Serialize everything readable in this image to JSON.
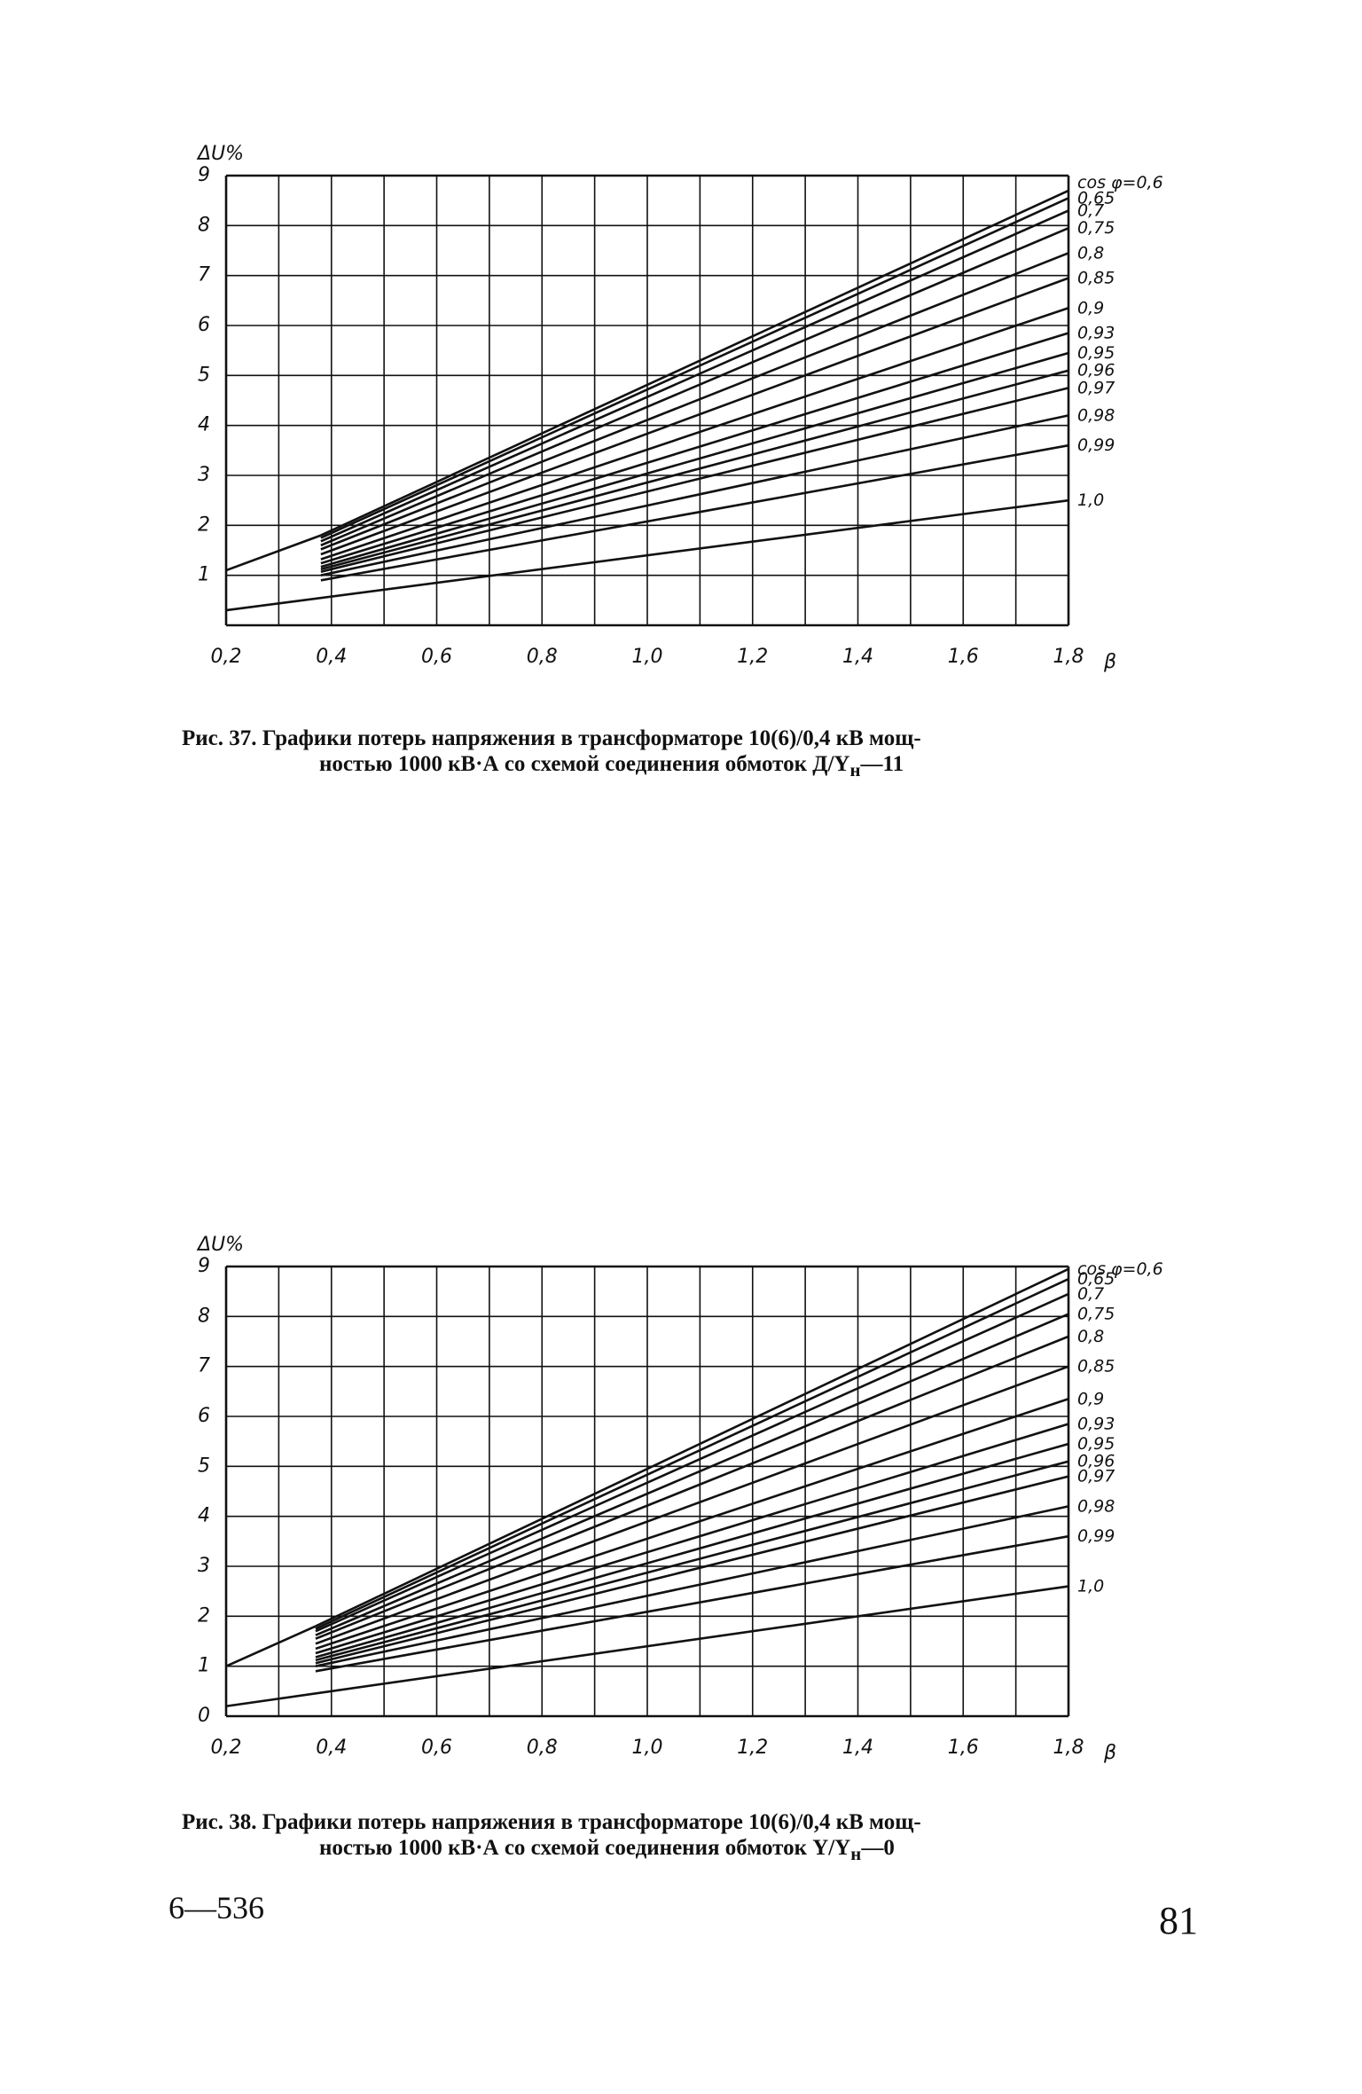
{
  "captions": {
    "fig37_line1": "Рис. 37. Графики потерь напряжения в трансформаторе 10(6)/0,4 кВ мощ-",
    "fig37_line2_main": "ностью 1000 кВ·А со схемой соединения обмоток Д/Y",
    "fig37_line2_sub": "н",
    "fig37_line2_tail": "—11",
    "fig38_line1": "Рис. 38. Графики потерь напряжения в трансформаторе 10(6)/0,4 кВ мощ-",
    "fig38_line2_main": "ностью 1000 кВ·А со схемой соединения обмоток Y/Y",
    "fig38_line2_sub": "н",
    "fig38_line2_tail": "—0"
  },
  "footer": {
    "left": "6—536",
    "right": "81"
  },
  "chart_data": [
    {
      "type": "line",
      "id": "fig37",
      "ylabel": "ΔU%",
      "xlabel": "β",
      "xlim": [
        0.2,
        1.8
      ],
      "ylim": [
        0,
        9
      ],
      "grid": true,
      "x_ticks": [
        "0,2",
        "0,4",
        "0,6",
        "0,8",
        "1,0",
        "1,2",
        "1,4",
        "1,6",
        "1,8"
      ],
      "y_ticks": [
        "1",
        "2",
        "3",
        "4",
        "5",
        "6",
        "7",
        "8",
        "9"
      ],
      "legend_title": "cos φ=",
      "series": [
        {
          "name": "0,6",
          "points": [
            [
              0.38,
              1.8
            ],
            [
              1.8,
              8.7
            ]
          ]
        },
        {
          "name": "0,65",
          "points": [
            [
              0.38,
              1.75
            ],
            [
              1.8,
              8.55
            ]
          ]
        },
        {
          "name": "0,7",
          "points": [
            [
              0.38,
              1.68
            ],
            [
              1.8,
              8.3
            ]
          ]
        },
        {
          "name": "0,75",
          "points": [
            [
              0.38,
              1.6
            ],
            [
              1.8,
              7.95
            ]
          ]
        },
        {
          "name": "0,8",
          "points": [
            [
              0.38,
              1.52
            ],
            [
              1.8,
              7.45
            ]
          ]
        },
        {
          "name": "0,85",
          "points": [
            [
              0.38,
              1.42
            ],
            [
              1.8,
              6.95
            ]
          ]
        },
        {
          "name": "0,9",
          "points": [
            [
              0.38,
              1.32
            ],
            [
              1.8,
              6.35
            ]
          ]
        },
        {
          "name": "0,93",
          "points": [
            [
              0.38,
              1.24
            ],
            [
              1.8,
              5.85
            ]
          ]
        },
        {
          "name": "0,95",
          "points": [
            [
              0.38,
              1.17
            ],
            [
              1.8,
              5.45
            ]
          ]
        },
        {
          "name": "0,96",
          "points": [
            [
              0.38,
              1.12
            ],
            [
              1.8,
              5.1
            ]
          ]
        },
        {
          "name": "0,97",
          "points": [
            [
              0.38,
              1.07
            ],
            [
              1.8,
              4.75
            ]
          ]
        },
        {
          "name": "0,98",
          "points": [
            [
              0.38,
              1.0
            ],
            [
              1.8,
              4.2
            ]
          ]
        },
        {
          "name": "0,99",
          "points": [
            [
              0.38,
              0.9
            ],
            [
              1.8,
              3.6
            ]
          ]
        },
        {
          "name": "1,0",
          "points": [
            [
              0.2,
              0.3
            ],
            [
              1.8,
              2.5
            ]
          ]
        }
      ],
      "annotations": [
        {
          "type": "line",
          "points": [
            [
              0.2,
              1.1
            ],
            [
              0.38,
              1.8
            ]
          ]
        }
      ]
    },
    {
      "type": "line",
      "id": "fig38",
      "ylabel": "ΔU%",
      "xlabel": "β",
      "xlim": [
        0.2,
        1.8
      ],
      "ylim": [
        0,
        9
      ],
      "grid": true,
      "x_ticks": [
        "0,2",
        "0,4",
        "0,6",
        "0,8",
        "1,0",
        "1,2",
        "1,4",
        "1,6",
        "1,8"
      ],
      "y_ticks": [
        "0",
        "1",
        "2",
        "3",
        "4",
        "5",
        "6",
        "7",
        "8",
        "9"
      ],
      "legend_title": "cos φ=",
      "series": [
        {
          "name": "0,6",
          "points": [
            [
              0.37,
              1.8
            ],
            [
              1.8,
              8.95
            ]
          ]
        },
        {
          "name": "0,65",
          "points": [
            [
              0.37,
              1.75
            ],
            [
              1.8,
              8.75
            ]
          ]
        },
        {
          "name": "0,7",
          "points": [
            [
              0.37,
              1.7
            ],
            [
              1.8,
              8.45
            ]
          ]
        },
        {
          "name": "0,75",
          "points": [
            [
              0.37,
              1.62
            ],
            [
              1.8,
              8.05
            ]
          ]
        },
        {
          "name": "0,8",
          "points": [
            [
              0.37,
              1.55
            ],
            [
              1.8,
              7.6
            ]
          ]
        },
        {
          "name": "0,85",
          "points": [
            [
              0.37,
              1.45
            ],
            [
              1.8,
              7.0
            ]
          ]
        },
        {
          "name": "0,9",
          "points": [
            [
              0.37,
              1.35
            ],
            [
              1.8,
              6.35
            ]
          ]
        },
        {
          "name": "0,93",
          "points": [
            [
              0.37,
              1.26
            ],
            [
              1.8,
              5.85
            ]
          ]
        },
        {
          "name": "0,95",
          "points": [
            [
              0.37,
              1.18
            ],
            [
              1.8,
              5.45
            ]
          ]
        },
        {
          "name": "0,96",
          "points": [
            [
              0.37,
              1.12
            ],
            [
              1.8,
              5.1
            ]
          ]
        },
        {
          "name": "0,97",
          "points": [
            [
              0.37,
              1.06
            ],
            [
              1.8,
              4.8
            ]
          ]
        },
        {
          "name": "0,98",
          "points": [
            [
              0.37,
              1.0
            ],
            [
              1.8,
              4.2
            ]
          ]
        },
        {
          "name": "0,99",
          "points": [
            [
              0.37,
              0.9
            ],
            [
              1.8,
              3.6
            ]
          ]
        },
        {
          "name": "1,0",
          "points": [
            [
              0.2,
              0.2
            ],
            [
              1.8,
              2.6
            ]
          ]
        }
      ],
      "annotations": [
        {
          "type": "line",
          "points": [
            [
              0.2,
              1.0
            ],
            [
              0.37,
              1.8
            ]
          ]
        }
      ]
    }
  ]
}
